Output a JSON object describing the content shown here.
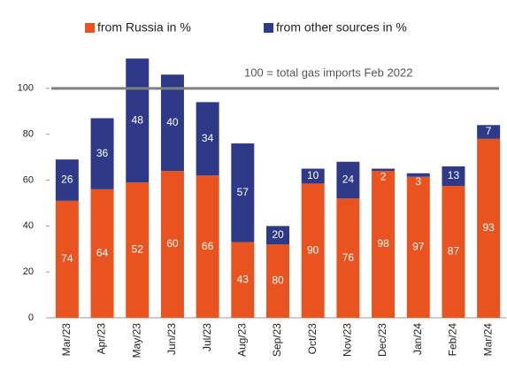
{
  "chart_data": {
    "type": "stacked_bar",
    "categories": [
      "Mar/23",
      "Apr/23",
      "May/23",
      "Jun/23",
      "Jul/23",
      "Aug/23",
      "Sep/23",
      "Oct/23",
      "Nov/23",
      "Dec/23",
      "Jan/24",
      "Feb/24",
      "Mar/24"
    ],
    "series": [
      {
        "name": "from Russia in %",
        "color": "#e8531f",
        "values": [
          51,
          56,
          59,
          64,
          62,
          33,
          32,
          58.5,
          52,
          64,
          61.5,
          57.5,
          78
        ],
        "shares": [
          74,
          64,
          52,
          60,
          66,
          43,
          80,
          90,
          76,
          98,
          97,
          87,
          93
        ]
      },
      {
        "name": "from other sources in %",
        "color": "#2e3a87",
        "values": [
          18,
          31,
          54,
          42,
          32,
          43,
          8,
          6.5,
          16,
          1,
          1.5,
          8.5,
          6
        ],
        "shares": [
          26,
          36,
          48,
          40,
          34,
          57,
          20,
          10,
          24,
          2,
          3,
          13,
          7
        ]
      }
    ],
    "ylim": [
      0,
      120
    ],
    "yticks": [
      0,
      20,
      40,
      60,
      80,
      100
    ],
    "reference_line": {
      "value": 100,
      "label": "100 = total gas imports Feb 2022",
      "color": "#7f7f7f"
    },
    "legend": "top",
    "grid": false
  }
}
